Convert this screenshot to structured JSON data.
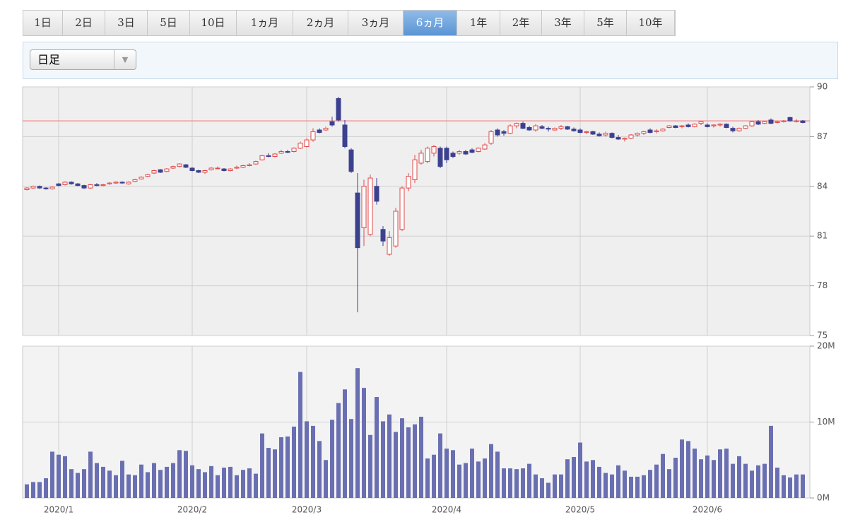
{
  "tabs": {
    "items": [
      "1日",
      "2日",
      "3日",
      "5日",
      "10日",
      "1ヵ月",
      "2ヵ月",
      "3ヵ月",
      "6ヵ月",
      "1年",
      "2年",
      "3年",
      "5年",
      "10年"
    ],
    "active": 8
  },
  "dropdown": "日足",
  "chart_data": [
    {
      "type": "candlestick",
      "categories": [
        null,
        null,
        null,
        null,
        null,
        "2020/1",
        null,
        null,
        null,
        null,
        null,
        null,
        null,
        null,
        null,
        null,
        null,
        null,
        null,
        null,
        null,
        null,
        null,
        null,
        null,
        null,
        "2020/2",
        null,
        null,
        null,
        null,
        null,
        null,
        null,
        null,
        null,
        null,
        null,
        null,
        null,
        null,
        null,
        null,
        null,
        "2020/3",
        null,
        null,
        null,
        null,
        null,
        null,
        null,
        null,
        null,
        null,
        null,
        null,
        null,
        null,
        null,
        null,
        null,
        null,
        null,
        null,
        null,
        "2020/4",
        null,
        null,
        null,
        null,
        null,
        null,
        null,
        null,
        null,
        null,
        null,
        null,
        null,
        null,
        null,
        null,
        null,
        null,
        null,
        null,
        "2020/5",
        null,
        null,
        null,
        null,
        null,
        null,
        null,
        null,
        null,
        null,
        null,
        null,
        null,
        null,
        null,
        null,
        null,
        null,
        null,
        "2020/6",
        null,
        null,
        null,
        null,
        null,
        null,
        null,
        null,
        null,
        null,
        null,
        null,
        null,
        null,
        null
      ],
      "ohlc": [
        [
          83.8,
          83.95,
          83.75,
          83.9
        ],
        [
          83.9,
          84.05,
          83.85,
          84.0
        ],
        [
          84.0,
          84.05,
          83.85,
          83.9
        ],
        [
          83.9,
          83.95,
          83.8,
          83.85
        ],
        [
          83.85,
          84.0,
          83.8,
          83.95
        ],
        [
          84.15,
          84.2,
          84.0,
          84.05
        ],
        [
          84.1,
          84.3,
          84.05,
          84.25
        ],
        [
          84.25,
          84.3,
          84.1,
          84.15
        ],
        [
          84.15,
          84.2,
          84.0,
          84.05
        ],
        [
          84.05,
          84.1,
          83.85,
          83.9
        ],
        [
          83.9,
          84.15,
          83.85,
          84.1
        ],
        [
          84.1,
          84.2,
          84.0,
          84.05
        ],
        [
          84.05,
          84.15,
          84.0,
          84.1
        ],
        [
          84.15,
          84.25,
          84.1,
          84.2
        ],
        [
          84.2,
          84.3,
          84.15,
          84.25
        ],
        [
          84.25,
          84.3,
          84.15,
          84.2
        ],
        [
          84.15,
          84.3,
          84.1,
          84.25
        ],
        [
          84.3,
          84.45,
          84.25,
          84.4
        ],
        [
          84.45,
          84.6,
          84.4,
          84.55
        ],
        [
          84.6,
          84.75,
          84.55,
          84.7
        ],
        [
          84.8,
          85.0,
          84.75,
          84.95
        ],
        [
          85.0,
          85.05,
          84.8,
          84.85
        ],
        [
          84.9,
          85.1,
          84.85,
          85.05
        ],
        [
          85.1,
          85.25,
          85.05,
          85.2
        ],
        [
          85.2,
          85.4,
          85.15,
          85.35
        ],
        [
          85.3,
          85.35,
          85.1,
          85.15
        ],
        [
          85.1,
          85.15,
          84.9,
          84.95
        ],
        [
          84.95,
          85.0,
          84.8,
          84.85
        ],
        [
          84.85,
          85.0,
          84.75,
          84.95
        ],
        [
          85.0,
          85.15,
          84.95,
          85.1
        ],
        [
          85.1,
          85.2,
          85.05,
          85.1
        ],
        [
          85.05,
          85.1,
          84.9,
          84.95
        ],
        [
          84.95,
          85.1,
          84.9,
          85.05
        ],
        [
          85.1,
          85.25,
          85.05,
          85.15
        ],
        [
          85.15,
          85.3,
          85.1,
          85.25
        ],
        [
          85.25,
          85.4,
          85.2,
          85.3
        ],
        [
          85.35,
          85.55,
          85.3,
          85.5
        ],
        [
          85.6,
          85.9,
          85.55,
          85.85
        ],
        [
          85.85,
          86.0,
          85.75,
          85.8
        ],
        [
          85.8,
          86.0,
          85.75,
          85.95
        ],
        [
          86.0,
          86.2,
          85.95,
          86.1
        ],
        [
          86.1,
          86.2,
          86.0,
          86.05
        ],
        [
          86.1,
          86.35,
          86.05,
          86.3
        ],
        [
          86.3,
          86.7,
          86.25,
          86.6
        ],
        [
          86.4,
          86.9,
          86.35,
          86.8
        ],
        [
          86.8,
          87.5,
          86.7,
          87.3
        ],
        [
          87.4,
          87.5,
          87.2,
          87.25
        ],
        [
          87.4,
          87.6,
          87.35,
          87.5
        ],
        [
          87.9,
          88.2,
          87.6,
          87.7
        ],
        [
          89.3,
          89.4,
          87.9,
          88.0
        ],
        [
          87.7,
          88.0,
          86.3,
          86.4
        ],
        [
          86.2,
          86.3,
          84.8,
          84.9
        ],
        [
          83.6,
          84.8,
          76.4,
          80.3
        ],
        [
          81.5,
          84.4,
          80.4,
          84.0
        ],
        [
          81.1,
          84.7,
          81.0,
          84.5
        ],
        [
          84.0,
          84.5,
          82.9,
          83.1
        ],
        [
          81.4,
          81.6,
          80.4,
          80.7
        ],
        [
          79.9,
          81.3,
          79.8,
          80.9
        ],
        [
          80.4,
          82.7,
          80.3,
          82.5
        ],
        [
          81.4,
          84.0,
          81.3,
          83.9
        ],
        [
          83.9,
          84.8,
          83.7,
          84.6
        ],
        [
          84.4,
          85.9,
          84.2,
          85.6
        ],
        [
          85.4,
          86.2,
          85.3,
          86.0
        ],
        [
          85.5,
          86.4,
          85.4,
          86.3
        ],
        [
          86.0,
          86.5,
          85.8,
          86.4
        ],
        [
          86.3,
          86.4,
          85.1,
          85.2
        ],
        [
          86.3,
          86.4,
          85.4,
          85.6
        ],
        [
          86.0,
          86.1,
          85.7,
          85.8
        ],
        [
          86.0,
          86.2,
          85.9,
          86.1
        ],
        [
          86.1,
          86.2,
          85.9,
          85.95
        ],
        [
          86.2,
          86.3,
          86.0,
          86.05
        ],
        [
          86.1,
          86.35,
          86.05,
          86.3
        ],
        [
          86.25,
          86.6,
          86.2,
          86.5
        ],
        [
          86.6,
          87.4,
          86.5,
          87.3
        ],
        [
          87.4,
          87.5,
          87.0,
          87.1
        ],
        [
          87.3,
          87.4,
          87.05,
          87.2
        ],
        [
          87.2,
          87.75,
          87.15,
          87.65
        ],
        [
          87.65,
          87.85,
          87.5,
          87.8
        ],
        [
          87.8,
          87.9,
          87.45,
          87.5
        ],
        [
          87.55,
          87.65,
          87.35,
          87.4
        ],
        [
          87.4,
          87.75,
          87.3,
          87.65
        ],
        [
          87.6,
          87.7,
          87.45,
          87.5
        ],
        [
          87.5,
          87.6,
          87.3,
          87.45
        ],
        [
          87.4,
          87.55,
          87.35,
          87.5
        ],
        [
          87.5,
          87.7,
          87.4,
          87.6
        ],
        [
          87.6,
          87.65,
          87.4,
          87.45
        ],
        [
          87.45,
          87.55,
          87.3,
          87.35
        ],
        [
          87.4,
          87.5,
          87.2,
          87.25
        ],
        [
          87.25,
          87.35,
          87.15,
          87.3
        ],
        [
          87.3,
          87.35,
          87.1,
          87.15
        ],
        [
          87.15,
          87.25,
          87.0,
          87.05
        ],
        [
          87.1,
          87.3,
          87.0,
          87.2
        ],
        [
          87.2,
          87.25,
          86.9,
          86.95
        ],
        [
          86.95,
          87.1,
          86.8,
          86.85
        ],
        [
          86.85,
          86.95,
          86.7,
          86.9
        ],
        [
          86.9,
          87.15,
          86.85,
          87.1
        ],
        [
          87.1,
          87.25,
          87.0,
          87.2
        ],
        [
          87.2,
          87.35,
          87.1,
          87.3
        ],
        [
          87.4,
          87.5,
          87.2,
          87.25
        ],
        [
          87.3,
          87.45,
          87.2,
          87.35
        ],
        [
          87.35,
          87.5,
          87.3,
          87.45
        ],
        [
          87.55,
          87.7,
          87.5,
          87.65
        ],
        [
          87.65,
          87.7,
          87.5,
          87.55
        ],
        [
          87.6,
          87.7,
          87.5,
          87.65
        ],
        [
          87.7,
          87.8,
          87.55,
          87.6
        ],
        [
          87.6,
          87.8,
          87.55,
          87.75
        ],
        [
          87.8,
          87.95,
          87.7,
          87.9
        ],
        [
          87.7,
          87.8,
          87.55,
          87.6
        ],
        [
          87.65,
          87.75,
          87.55,
          87.7
        ],
        [
          87.7,
          87.8,
          87.6,
          87.75
        ],
        [
          87.75,
          87.8,
          87.5,
          87.55
        ],
        [
          87.5,
          87.6,
          87.25,
          87.35
        ],
        [
          87.35,
          87.55,
          87.3,
          87.5
        ],
        [
          87.5,
          87.7,
          87.45,
          87.65
        ],
        [
          87.65,
          87.95,
          87.6,
          87.9
        ],
        [
          87.9,
          88.0,
          87.7,
          87.75
        ],
        [
          87.8,
          87.95,
          87.75,
          87.9
        ],
        [
          88.0,
          88.1,
          87.75,
          87.8
        ],
        [
          87.85,
          87.95,
          87.8,
          87.9
        ],
        [
          87.9,
          88.0,
          87.85,
          87.95
        ],
        [
          88.15,
          88.2,
          87.9,
          87.95
        ],
        [
          87.95,
          88.05,
          87.85,
          87.95
        ],
        [
          87.95,
          88.0,
          87.8,
          87.85
        ]
      ],
      "up_color": "#e04848",
      "down_color": "#3c418f",
      "ref_line": 87.95,
      "ref_color": "#f08a8a",
      "ylim": [
        75,
        90
      ],
      "yticks": [
        75,
        78,
        81,
        84,
        87,
        90
      ],
      "grid": true
    },
    {
      "type": "bar",
      "values": [
        1.8,
        2.1,
        2.1,
        2.6,
        6.1,
        5.7,
        5.5,
        3.8,
        3.3,
        3.8,
        6.1,
        4.6,
        4.1,
        3.6,
        3.0,
        4.9,
        3.1,
        3.0,
        4.4,
        3.4,
        4.6,
        3.7,
        4.1,
        4.6,
        6.3,
        6.2,
        4.3,
        3.8,
        3.4,
        4.2,
        3.0,
        4.0,
        4.1,
        3.0,
        3.7,
        3.9,
        3.2,
        8.5,
        6.6,
        6.4,
        8.0,
        8.1,
        9.4,
        16.6,
        10.1,
        9.5,
        7.5,
        5.0,
        10.3,
        12.5,
        14.3,
        10.4,
        17.1,
        14.5,
        8.3,
        13.3,
        10.1,
        11.0,
        8.7,
        10.5,
        9.3,
        9.7,
        10.7,
        5.2,
        5.7,
        8.5,
        6.5,
        6.3,
        4.4,
        4.6,
        6.5,
        4.8,
        5.2,
        7.1,
        6.1,
        3.9,
        3.9,
        3.8,
        3.9,
        4.5,
        3.1,
        2.6,
        2.0,
        3.1,
        3.1,
        5.1,
        5.4,
        7.3,
        4.8,
        5.0,
        4.1,
        3.3,
        3.1,
        4.3,
        3.6,
        2.8,
        2.8,
        3.0,
        3.7,
        4.4,
        5.8,
        3.8,
        5.3,
        7.7,
        7.5,
        6.5,
        5.1,
        5.6,
        5.0,
        6.4,
        6.5,
        4.5,
        5.5,
        4.5,
        3.6,
        4.3,
        4.5,
        9.5,
        4.0,
        3.0,
        2.7,
        3.1,
        3.1
      ],
      "color": "#6a6fb2",
      "ylim": [
        0,
        20
      ],
      "yticks": [
        {
          "value": 0,
          "label": "0M"
        },
        {
          "value": 10,
          "label": "10M"
        },
        {
          "value": 20,
          "label": "20M"
        }
      ],
      "grid": true
    }
  ]
}
